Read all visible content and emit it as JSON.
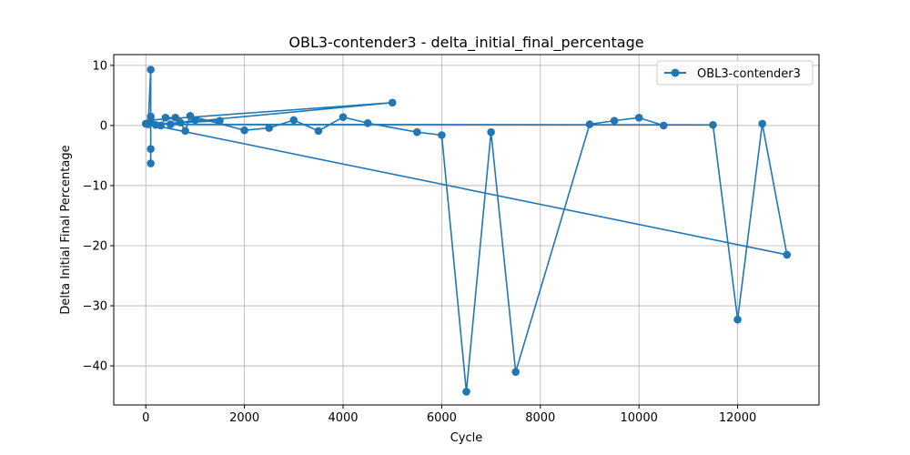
{
  "chart_data": {
    "type": "line",
    "title": "OBL3-contender3 - delta_initial_final_percentage",
    "xlabel": "Cycle",
    "ylabel": "Delta Initial Final Percentage",
    "xlim": [
      -650,
      13650
    ],
    "ylim": [
      -46.5,
      11.8
    ],
    "xticks": [
      0,
      2000,
      4000,
      6000,
      8000,
      10000,
      12000
    ],
    "xtick_labels": [
      "0",
      "2000",
      "4000",
      "6000",
      "8000",
      "10000",
      "12000"
    ],
    "yticks": [
      10,
      0,
      -10,
      -20,
      -30,
      -40
    ],
    "ytick_labels": [
      "10",
      "0",
      "−10",
      "−20",
      "−30",
      "−40"
    ],
    "grid": true,
    "legend_position": "top-right",
    "color": "#1f77b4",
    "series": [
      {
        "name": "OBL3-contender3",
        "x": [
          0,
          13000,
          12500,
          12000,
          11500,
          500,
          1000,
          1500,
          50,
          100,
          100,
          100,
          100,
          100,
          5000,
          200,
          300,
          400,
          600,
          700,
          800,
          900,
          2000,
          2500,
          3000,
          3500,
          4000,
          4500,
          5500,
          6000,
          6500,
          7000,
          7500,
          9000,
          9500,
          10000,
          10500
        ],
        "y": [
          0.3,
          -21.5,
          0.3,
          -32.3,
          0.1,
          0.2,
          0.9,
          0.8,
          0.2,
          9.3,
          1.5,
          -3.9,
          -6.3,
          0.9,
          3.8,
          0.1,
          0.0,
          1.3,
          1.3,
          0.5,
          -0.9,
          1.6,
          -0.8,
          -0.4,
          0.9,
          -0.9,
          1.4,
          0.4,
          -1.1,
          -1.6,
          -44.3,
          -1.1,
          -41.0,
          0.2,
          0.8,
          1.3,
          0.0
        ]
      }
    ]
  }
}
